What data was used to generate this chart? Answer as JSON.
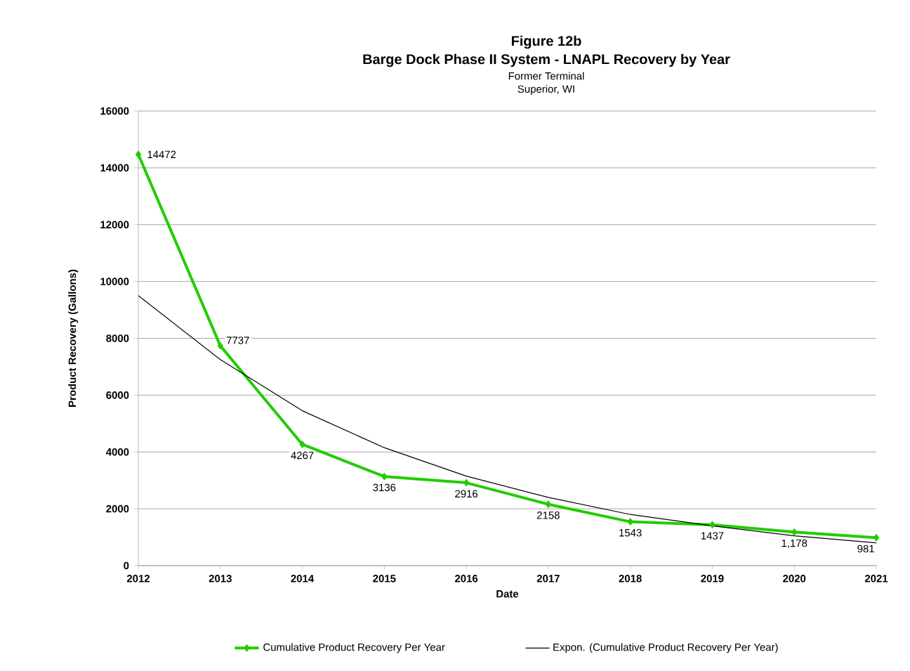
{
  "chart_data": {
    "type": "line",
    "title": "Figure 12b",
    "subtitle": "Barge Dock Phase II System - LNAPL Recovery by Year",
    "annotations": [
      "Former Terminal",
      "Superior, WI"
    ],
    "xlabel": "Date",
    "ylabel": "Product Recovery (Gallons)",
    "x": [
      2012,
      2013,
      2014,
      2015,
      2016,
      2017,
      2018,
      2019,
      2020,
      2021
    ],
    "series": [
      {
        "name": "Cumulative Product Recovery Per Year",
        "color": "#22cc00",
        "marker": "diamond",
        "values": [
          14472,
          7737,
          4267,
          3136,
          2916,
          2158,
          1543,
          1437,
          1178,
          981
        ],
        "value_labels": [
          "14472",
          "7737",
          "4267",
          "3136",
          "2916",
          "2158",
          "1543",
          "1437",
          "1,178",
          "981"
        ]
      },
      {
        "name": "Expon. (Cumulative Product Recovery Per Year)",
        "color": "#000000",
        "marker": "none",
        "values": [
          9500,
          7250,
          5450,
          4150,
          3150,
          2400,
          1800,
          1400,
          1050,
          800
        ]
      }
    ],
    "xlim": [
      2012,
      2021
    ],
    "xticks": [
      2012,
      2013,
      2014,
      2015,
      2016,
      2017,
      2018,
      2019,
      2020,
      2021
    ],
    "ylim": [
      0,
      16000
    ],
    "yticks": [
      0,
      2000,
      4000,
      6000,
      8000,
      10000,
      12000,
      14000,
      16000
    ],
    "grid": "y",
    "legend": "bottom",
    "line_style": "solid"
  }
}
